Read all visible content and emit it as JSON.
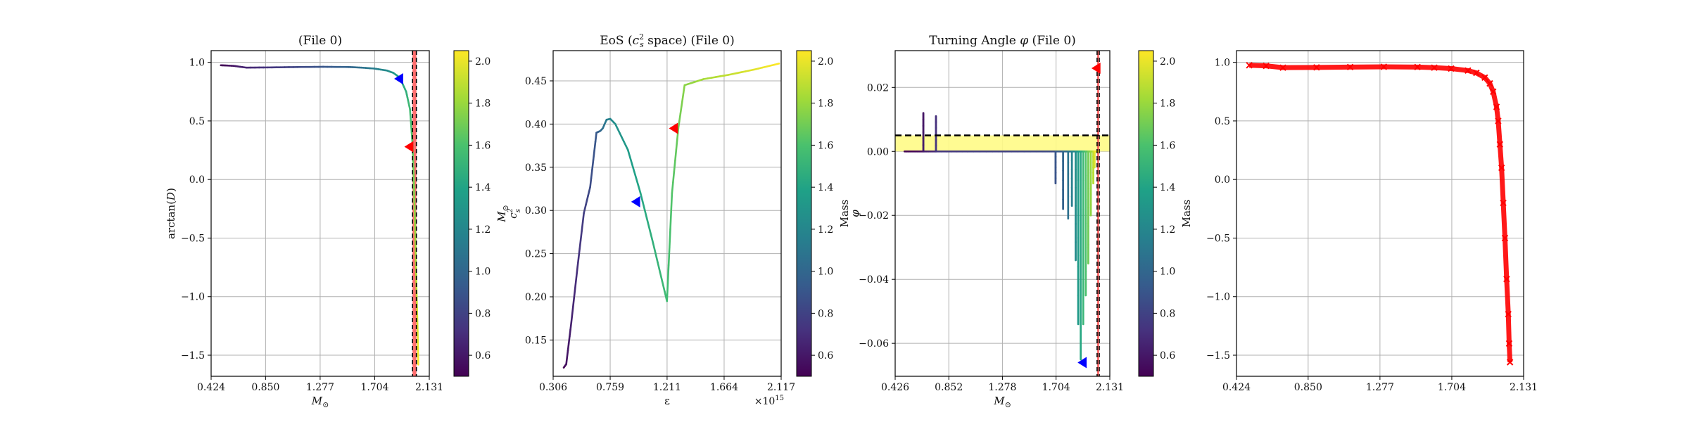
{
  "chart_data": [
    {
      "type": "line",
      "title": "(File 0)",
      "xlabel": "M⊙",
      "ylabel": "arctan(D)",
      "xlim": [
        0.424,
        2.131
      ],
      "ylim": [
        -1.68,
        1.1
      ],
      "xticks": [
        0.424,
        0.85,
        1.277,
        1.704,
        2.131
      ],
      "xtick_labels": [
        "0.424",
        "0.850",
        "1.277",
        "1.704",
        "2.131"
      ],
      "yticks": [
        1.0,
        0.5,
        0.0,
        -0.5,
        -1.0,
        -1.5
      ],
      "ytick_labels": [
        "1.0",
        "0.5",
        "0.0",
        "−0.5",
        "−1.0",
        "−1.5"
      ],
      "grid": true,
      "colorbar": {
        "label": "M⊙",
        "range": [
          0.5,
          2.05
        ],
        "ticks": [
          "0.6",
          "0.8",
          "1.0",
          "1.2",
          "1.4",
          "1.6",
          "1.8",
          "2.0"
        ],
        "tick_values": [
          0.6,
          0.8,
          1.0,
          1.2,
          1.4,
          1.6,
          1.8,
          2.0
        ]
      },
      "series": [
        {
          "x": [
            0.5,
            0.6,
            0.7,
            0.9,
            1.1,
            1.3,
            1.5,
            1.6,
            1.7,
            1.8,
            1.85,
            1.9,
            1.95,
            1.98,
            2.0,
            2.01,
            2.02,
            2.03,
            2.04,
            2.045
          ],
          "y": [
            0.975,
            0.97,
            0.955,
            0.957,
            0.96,
            0.962,
            0.96,
            0.955,
            0.947,
            0.93,
            0.91,
            0.87,
            0.75,
            0.6,
            0.3,
            0.0,
            -0.4,
            -0.9,
            -1.3,
            -1.58
          ]
        }
      ],
      "markers": [
        {
          "color": "#0000ff",
          "x": 1.9,
          "y": 0.86
        },
        {
          "color": "#ff0000",
          "x": 1.98,
          "y": 0.28
        }
      ],
      "vlines": [
        2.0,
        2.03
      ],
      "vband": [
        2.0,
        2.03
      ]
    },
    {
      "type": "line",
      "title": "EoS (c²s space) (File 0)",
      "xlabel": "ε",
      "ylabel": "c²s",
      "x_multiplier": "×10¹⁵",
      "xlim": [
        0.306,
        2.117
      ],
      "ylim": [
        0.108,
        0.485
      ],
      "xticks": [
        0.306,
        0.759,
        1.211,
        1.664,
        2.117
      ],
      "xtick_labels": [
        "0.306",
        "0.759",
        "1.211",
        "1.664",
        "2.117"
      ],
      "yticks": [
        0.15,
        0.2,
        0.25,
        0.3,
        0.35,
        0.4,
        0.45
      ],
      "ytick_labels": [
        "0.15",
        "0.20",
        "0.25",
        "0.30",
        "0.35",
        "0.40",
        "0.45"
      ],
      "grid": true,
      "colorbar": {
        "label": "Mass",
        "range": [
          0.5,
          2.05
        ],
        "ticks": [
          "0.6",
          "0.8",
          "1.0",
          "1.2",
          "1.4",
          "1.6",
          "1.8",
          "2.0"
        ],
        "tick_values": [
          0.6,
          0.8,
          1.0,
          1.2,
          1.4,
          1.6,
          1.8,
          2.0
        ]
      },
      "series": [
        {
          "x": [
            0.39,
            0.41,
            0.45,
            0.5,
            0.55,
            0.6,
            0.65,
            0.68,
            0.7,
            0.73,
            0.76,
            0.8,
            0.9,
            1.0,
            1.1,
            1.21,
            1.25,
            1.3,
            1.35,
            1.5,
            1.7,
            1.9,
            2.1
          ],
          "y": [
            0.118,
            0.122,
            0.17,
            0.235,
            0.297,
            0.327,
            0.39,
            0.392,
            0.395,
            0.405,
            0.406,
            0.4,
            0.37,
            0.32,
            0.262,
            0.195,
            0.32,
            0.395,
            0.445,
            0.452,
            0.457,
            0.463,
            0.47
          ]
        }
      ],
      "markers": [
        {
          "color": "#0000ff",
          "x": 0.97,
          "y": 0.31
        },
        {
          "color": "#ff0000",
          "x": 1.27,
          "y": 0.395
        }
      ]
    },
    {
      "type": "line",
      "title": "Turning Angle φ (File 0)",
      "xlabel": "M⊙",
      "ylabel": "φ",
      "xlim": [
        0.426,
        2.131
      ],
      "ylim": [
        -0.0703,
        0.0315
      ],
      "xticks": [
        0.426,
        0.852,
        1.278,
        1.704,
        2.131
      ],
      "xtick_labels": [
        "0.426",
        "0.852",
        "1.278",
        "1.704",
        "2.131"
      ],
      "yticks": [
        0.02,
        0.0,
        -0.02,
        -0.04,
        -0.06
      ],
      "ytick_labels": [
        "0.02",
        "0.00",
        "−0.02",
        "−0.04",
        "−0.06"
      ],
      "grid": true,
      "colorbar": {
        "label": "Mass",
        "range": [
          0.5,
          2.05
        ],
        "ticks": [
          "0.6",
          "0.8",
          "1.0",
          "1.2",
          "1.4",
          "1.6",
          "1.8",
          "2.0"
        ],
        "tick_values": [
          0.6,
          0.8,
          1.0,
          1.2,
          1.4,
          1.6,
          1.8,
          2.0
        ]
      },
      "series": [
        {
          "x": [
            0.5,
            0.6,
            0.65,
            0.65,
            0.65,
            0.7,
            0.75,
            0.75,
            0.75,
            1.0,
            1.3,
            1.6,
            1.7,
            1.7,
            1.7,
            1.76,
            1.76,
            1.76,
            1.8,
            1.8,
            1.8,
            1.83,
            1.83,
            1.83,
            1.86,
            1.86,
            1.86,
            1.88,
            1.88,
            1.88,
            1.9,
            1.9,
            1.9,
            1.92,
            1.92,
            1.92,
            1.94,
            1.94,
            1.94,
            1.96,
            1.96,
            1.96,
            1.98,
            1.98,
            1.98,
            2.0,
            2.0,
            2.0,
            2.01,
            2.01,
            2.01,
            2.02,
            2.04
          ],
          "y": [
            0.0,
            0.0,
            0.0,
            0.012,
            0.0,
            0.0,
            0.0,
            0.011,
            0.0,
            0.0,
            0.0,
            0.0,
            0.0,
            -0.01,
            0.0,
            0.0,
            -0.018,
            0.0,
            0.0,
            -0.021,
            0.0,
            0.0,
            -0.017,
            0.0,
            0.0,
            -0.034,
            0.0,
            0.0,
            -0.054,
            0.0,
            0.0,
            -0.065,
            0.0,
            0.0,
            -0.054,
            0.0,
            0.0,
            -0.045,
            0.0,
            0.0,
            -0.035,
            0.0,
            0.0,
            -0.02,
            0.0,
            0.0,
            -0.01,
            0.0,
            0.0,
            -0.005,
            0.0,
            0.0,
            0.0
          ]
        }
      ],
      "markers": [
        {
          "color": "#0000ff",
          "x": 1.92,
          "y": -0.066
        },
        {
          "color": "#ff0000",
          "x": 2.03,
          "y": 0.026
        }
      ],
      "hlines": [
        0.005
      ],
      "hband": [
        0.0,
        0.005
      ],
      "vlines": [
        2.03,
        2.047
      ],
      "vband": [
        2.03,
        2.047
      ]
    },
    {
      "type": "scatter",
      "title": "",
      "xlabel": "",
      "ylabel": "",
      "xlim": [
        0.424,
        2.131
      ],
      "ylim": [
        -1.68,
        1.1
      ],
      "xticks": [
        0.424,
        0.85,
        1.277,
        1.704,
        2.131
      ],
      "xtick_labels": [
        "0.424",
        "0.850",
        "1.277",
        "1.704",
        "2.131"
      ],
      "yticks": [
        1.0,
        0.5,
        0.0,
        -0.5,
        -1.0,
        -1.5
      ],
      "ytick_labels": [
        "1.0",
        "0.5",
        "0.0",
        "−0.5",
        "−1.0",
        "−1.5"
      ],
      "grid": true,
      "marker": "x",
      "color": "#ff0000",
      "series": [
        {
          "x": [
            0.5,
            0.6,
            0.7,
            0.9,
            1.1,
            1.3,
            1.5,
            1.6,
            1.7,
            1.8,
            1.85,
            1.9,
            1.93,
            1.95,
            1.97,
            1.98,
            1.99,
            2.0,
            2.01,
            2.02,
            2.03,
            2.04,
            2.045,
            2.05
          ],
          "y": [
            0.975,
            0.97,
            0.955,
            0.957,
            0.96,
            0.962,
            0.96,
            0.955,
            0.947,
            0.93,
            0.91,
            0.87,
            0.82,
            0.75,
            0.62,
            0.5,
            0.3,
            0.1,
            -0.2,
            -0.5,
            -0.85,
            -1.15,
            -1.4,
            -1.56
          ]
        }
      ]
    }
  ]
}
